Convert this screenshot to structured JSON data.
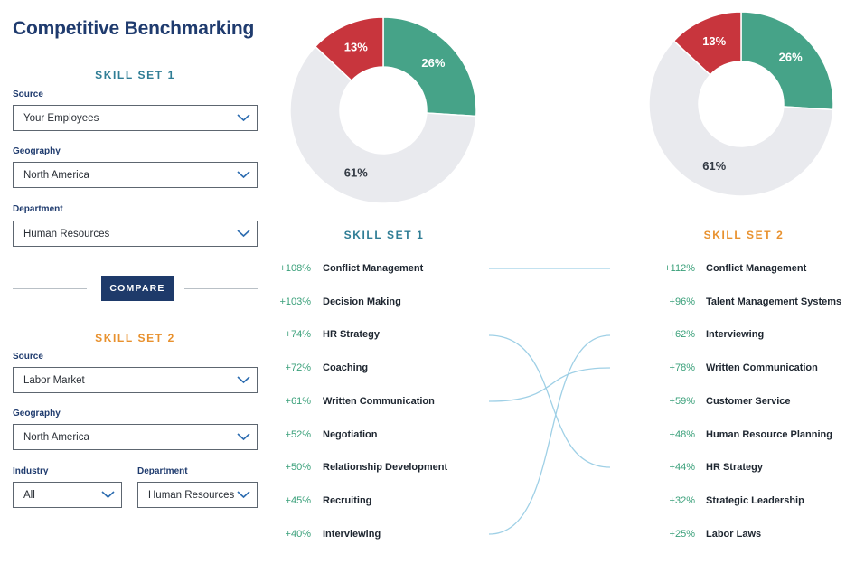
{
  "page": {
    "title": "Competitive Benchmarking"
  },
  "colors": {
    "teal": "#46a388",
    "red": "#c8353d",
    "grey": "#e9eaee",
    "connector": "#9fd0e6"
  },
  "left_panel": {
    "skill_set_1": {
      "heading": "SKILL SET 1",
      "source": {
        "label": "Source",
        "value": "Your Employees"
      },
      "geography": {
        "label": "Geography",
        "value": "North America"
      },
      "department": {
        "label": "Department",
        "value": "Human Resources"
      }
    },
    "compare_label": "COMPARE",
    "skill_set_2": {
      "heading": "SKILL SET 2",
      "source": {
        "label": "Source",
        "value": "Labor Market"
      },
      "geography": {
        "label": "Geography",
        "value": "North America"
      },
      "industry": {
        "label": "Industry",
        "value": "All"
      },
      "department": {
        "label": "Department",
        "value": "Human Resources"
      }
    }
  },
  "donut1": {
    "segments": [
      {
        "name": "teal",
        "value": 26,
        "label": "26%"
      },
      {
        "name": "grey",
        "value": 61,
        "label": "61%"
      },
      {
        "name": "red",
        "value": 13,
        "label": "13%"
      }
    ]
  },
  "donut2": {
    "segments": [
      {
        "name": "teal",
        "value": 26,
        "label": "26%"
      },
      {
        "name": "grey",
        "value": 61,
        "label": "61%"
      },
      {
        "name": "red",
        "value": 13,
        "label": "13%"
      }
    ]
  },
  "skill_set_1": {
    "heading": "SKILL SET 1",
    "items": [
      {
        "pct": "+108%",
        "name": "Conflict Management"
      },
      {
        "pct": "+103%",
        "name": "Decision Making"
      },
      {
        "pct": "+74%",
        "name": "HR Strategy"
      },
      {
        "pct": "+72%",
        "name": "Coaching"
      },
      {
        "pct": "+61%",
        "name": "Written Communication"
      },
      {
        "pct": "+52%",
        "name": "Negotiation"
      },
      {
        "pct": "+50%",
        "name": "Relationship Development"
      },
      {
        "pct": "+45%",
        "name": "Recruiting"
      },
      {
        "pct": "+40%",
        "name": "Interviewing"
      }
    ]
  },
  "skill_set_2": {
    "heading": "SKILL SET 2",
    "items": [
      {
        "pct": "+112%",
        "name": "Conflict Management"
      },
      {
        "pct": "+96%",
        "name": "Talent Management Systems"
      },
      {
        "pct": "+62%",
        "name": "Interviewing"
      },
      {
        "pct": "+78%",
        "name": "Written Communication"
      },
      {
        "pct": "+59%",
        "name": "Customer Service"
      },
      {
        "pct": "+48%",
        "name": "Human Resource Planning"
      },
      {
        "pct": "+44%",
        "name": "HR Strategy"
      },
      {
        "pct": "+32%",
        "name": "Strategic Leadership"
      },
      {
        "pct": "+25%",
        "name": "Labor Laws"
      }
    ]
  }
}
